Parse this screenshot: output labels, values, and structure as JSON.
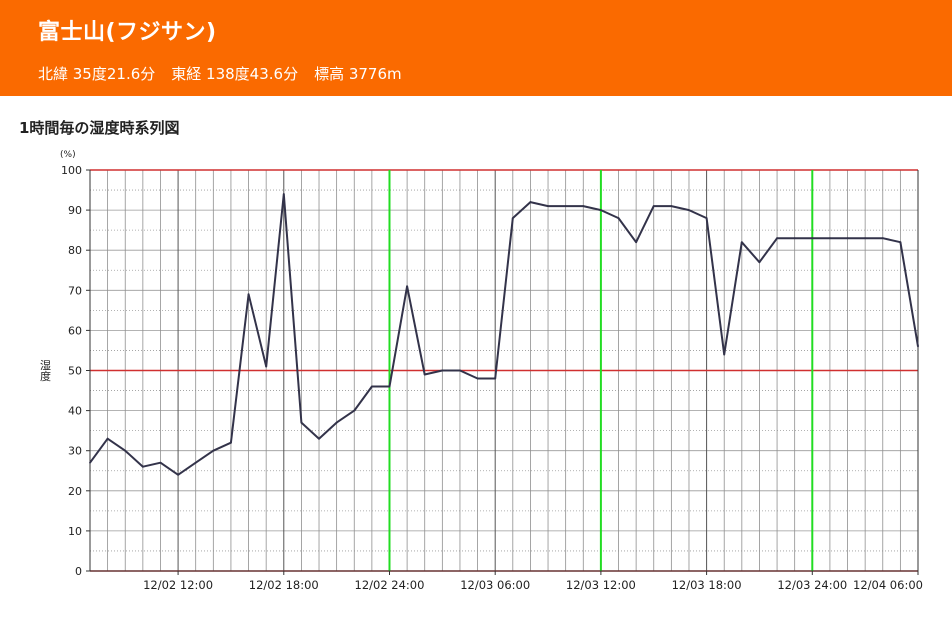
{
  "header": {
    "title": "富士山(フジサン)",
    "latitude": "北緯 35度21.6分",
    "longitude": "東経 138度43.6分",
    "elevation": "標高 3776m",
    "background_color": "#fa6a00"
  },
  "chart_heading": "1時間毎の湿度時系列図",
  "chart_data": {
    "type": "line",
    "title": "1時間毎の湿度時系列図",
    "ylabel": "湿度",
    "yunit": "(%)",
    "ylim": [
      0,
      100
    ],
    "yticks": [
      0,
      10,
      20,
      30,
      40,
      50,
      60,
      70,
      80,
      90,
      100
    ],
    "xlim": [
      "12/02 07:00",
      "12/04 06:00"
    ],
    "xtick_labels": [
      "12/02 12:00",
      "12/02 18:00",
      "12/02 24:00",
      "12/03 06:00",
      "12/03 12:00",
      "12/03 18:00",
      "12/03 24:00",
      "12/04 06:00"
    ],
    "grid": true,
    "reference_lines": [
      {
        "axis": "y",
        "value": 50,
        "color": "#d03030"
      },
      {
        "axis": "y",
        "value": 100,
        "color": "#d03030"
      },
      {
        "axis": "y",
        "value": 0,
        "color": "#d03030"
      },
      {
        "axis": "x",
        "value": "12/02 24:00",
        "color": "#22dd22"
      },
      {
        "axis": "x",
        "value": "12/03 12:00",
        "color": "#22dd22"
      },
      {
        "axis": "x",
        "value": "12/03 24:00",
        "color": "#22dd22"
      }
    ],
    "series": [
      {
        "color": "#33334a",
        "values": [
          27,
          33,
          30,
          26,
          27,
          24,
          27,
          30,
          32,
          69,
          51,
          94,
          37,
          33,
          37,
          40,
          46,
          46,
          71,
          49,
          50,
          50,
          48,
          48,
          88,
          92,
          91,
          91,
          91,
          90,
          88,
          82,
          91,
          91,
          90,
          88,
          54,
          82,
          77,
          83,
          83,
          83,
          83,
          83,
          83,
          83,
          82,
          56
        ]
      }
    ],
    "x": [
      "12/02 07:00",
      "12/02 08:00",
      "12/02 09:00",
      "12/02 10:00",
      "12/02 11:00",
      "12/02 12:00",
      "12/02 13:00",
      "12/02 14:00",
      "12/02 15:00",
      "12/02 16:00",
      "12/02 17:00",
      "12/02 18:00",
      "12/02 19:00",
      "12/02 20:00",
      "12/02 21:00",
      "12/02 22:00",
      "12/02 23:00",
      "12/02 24:00",
      "12/03 01:00",
      "12/03 02:00",
      "12/03 03:00",
      "12/03 04:00",
      "12/03 05:00",
      "12/03 06:00",
      "12/03 07:00",
      "12/03 08:00",
      "12/03 09:00",
      "12/03 10:00",
      "12/03 11:00",
      "12/03 12:00",
      "12/03 13:00",
      "12/03 14:00",
      "12/03 15:00",
      "12/03 16:00",
      "12/03 17:00",
      "12/03 18:00",
      "12/03 19:00",
      "12/03 20:00",
      "12/03 21:00",
      "12/03 22:00",
      "12/03 23:00",
      "12/03 24:00",
      "12/04 01:00",
      "12/04 02:00",
      "12/04 03:00",
      "12/04 04:00",
      "12/04 05:00",
      "12/04 06:00"
    ]
  }
}
